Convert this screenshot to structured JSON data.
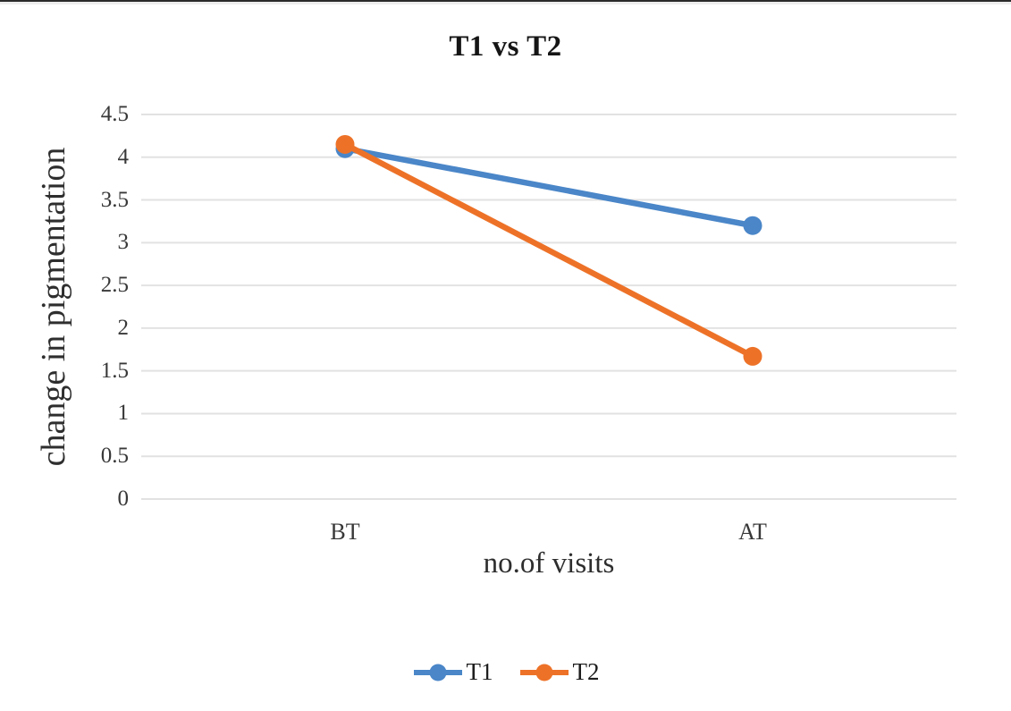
{
  "chart_data": {
    "type": "line",
    "title": "T1 vs T2",
    "xlabel": "no.of visits",
    "ylabel": "change in pigmentation",
    "categories": [
      "BT",
      "AT"
    ],
    "series": [
      {
        "name": "T1",
        "color": "#4A86C8",
        "values": [
          4.1,
          3.2
        ]
      },
      {
        "name": "T2",
        "color": "#ED7228",
        "values": [
          4.15,
          1.67
        ]
      }
    ],
    "ylim": [
      0,
      4.5
    ],
    "ytick_step": 0.5,
    "ytick_labels": [
      "0",
      "0.5",
      "1",
      "1.5",
      "2",
      "2.5",
      "3",
      "3.5",
      "4",
      "4.5"
    ],
    "grid": "horizontal",
    "grid_color": "#E2E2E2",
    "legend_position": "bottom"
  }
}
